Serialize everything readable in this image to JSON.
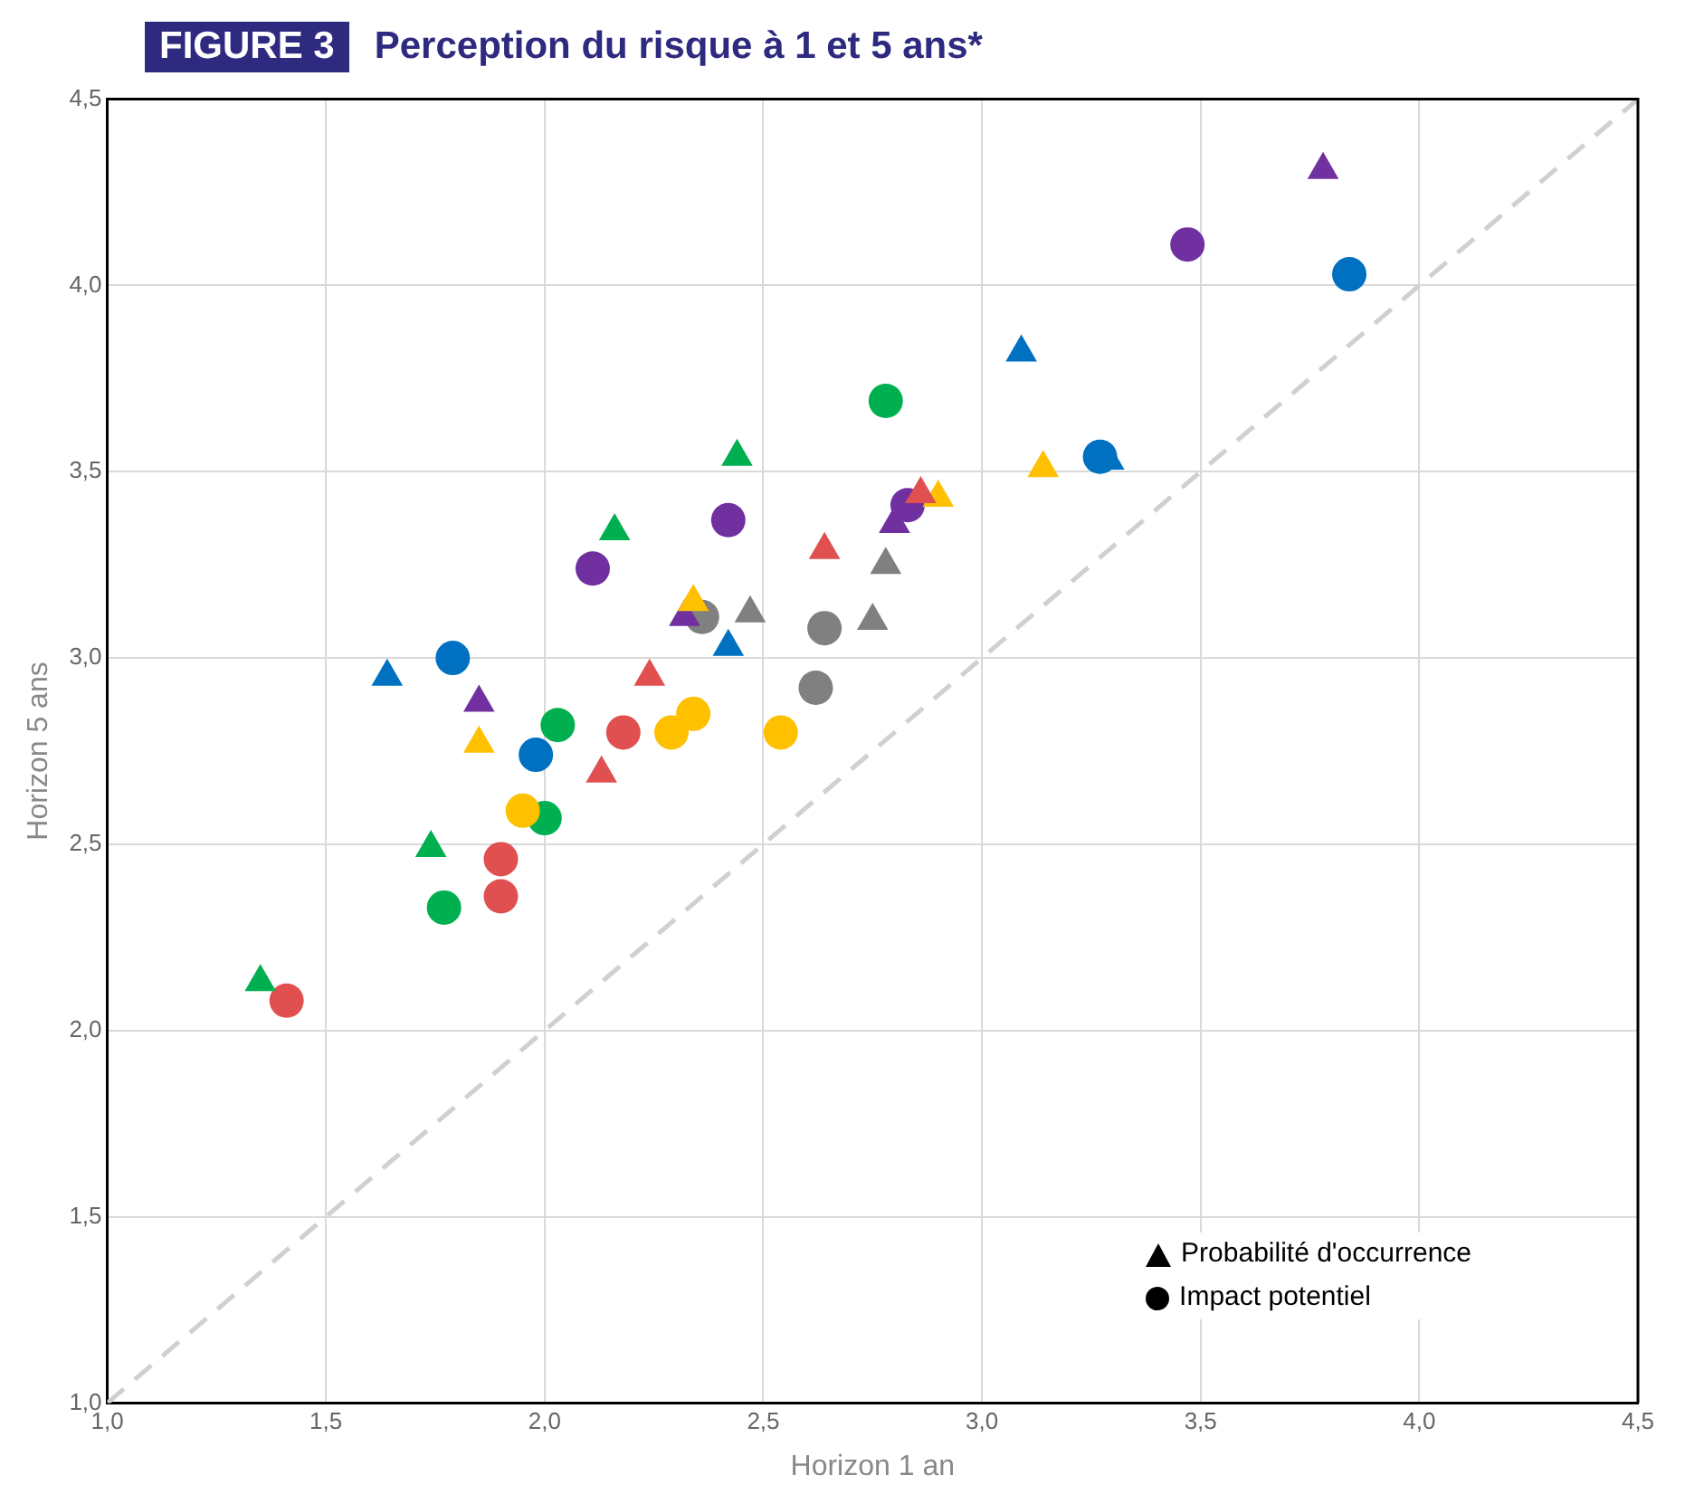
{
  "chart_data": {
    "type": "scatter",
    "title": "FIGURE 3",
    "subtitle": "Perception du risque à 1 et 5 ans*",
    "xlabel": "Horizon 1 an",
    "ylabel": "Horizon 5 ans",
    "xlim": [
      1,
      4.5
    ],
    "ylim": [
      1,
      4.5
    ],
    "xticks": [
      {
        "value": 1,
        "label": "1,0"
      },
      {
        "value": 1.5,
        "label": "1,5"
      },
      {
        "value": 2,
        "label": "2,0"
      },
      {
        "value": 2.5,
        "label": "2,5"
      },
      {
        "value": 3,
        "label": "3,0"
      },
      {
        "value": 3.5,
        "label": "3,5"
      },
      {
        "value": 4,
        "label": "4,0"
      },
      {
        "value": 4.5,
        "label": "4,5"
      }
    ],
    "yticks": [
      {
        "value": 1,
        "label": "1,0"
      },
      {
        "value": 1.5,
        "label": "1,5"
      },
      {
        "value": 2,
        "label": "2,0"
      },
      {
        "value": 2.5,
        "label": "2,5"
      },
      {
        "value": 3,
        "label": "3,0"
      },
      {
        "value": 3.5,
        "label": "3,5"
      },
      {
        "value": 4,
        "label": "4,0"
      },
      {
        "value": 4.5,
        "label": "4,5"
      }
    ],
    "grid": true,
    "legend": "bottom right",
    "series": [
      {
        "name": "Probabilité d'occurrence",
        "marker": "triangle",
        "x": [
          1.35,
          1.74,
          2.16,
          2.44,
          1.64,
          2.42,
          3.09,
          3.29,
          1.85,
          2.32,
          2.8,
          3.78,
          1.85,
          2.34,
          2.9,
          3.14,
          2.13,
          2.24,
          2.64,
          2.86,
          2.47,
          2.78,
          2.75
        ],
        "values": [
          2.13,
          2.49,
          3.34,
          3.54,
          2.95,
          3.03,
          3.82,
          3.53,
          2.88,
          3.11,
          3.36,
          4.31,
          2.77,
          3.15,
          3.43,
          3.51,
          2.69,
          2.95,
          3.29,
          3.44,
          3.12,
          3.25,
          3.1
        ],
        "colors": [
          "#00b050",
          "#00b050",
          "#00b050",
          "#00b050",
          "#0070c0",
          "#0070c0",
          "#0070c0",
          "#0070c0",
          "#7030a0",
          "#7030a0",
          "#7030a0",
          "#7030a0",
          "#ffc000",
          "#ffc000",
          "#ffc000",
          "#ffc000",
          "#e05050",
          "#e05050",
          "#e05050",
          "#e05050",
          "#808080",
          "#808080",
          "#808080"
        ]
      },
      {
        "name": "Impact potentiel",
        "marker": "circle",
        "x": [
          1.41,
          1.9,
          1.9,
          2.18,
          1.77,
          2.0,
          2.03,
          2.78,
          1.79,
          1.98,
          3.27,
          3.84,
          2.11,
          2.42,
          2.83,
          3.47,
          1.95,
          2.29,
          2.34,
          2.54,
          2.36,
          2.64,
          2.62
        ],
        "values": [
          2.08,
          2.46,
          2.36,
          2.8,
          2.33,
          2.57,
          2.82,
          3.69,
          3.0,
          2.74,
          3.54,
          4.03,
          3.24,
          3.37,
          3.41,
          4.11,
          2.59,
          2.8,
          2.85,
          2.8,
          3.11,
          3.08,
          2.92
        ],
        "colors": [
          "#e05050",
          "#e05050",
          "#e05050",
          "#e05050",
          "#00b050",
          "#00b050",
          "#00b050",
          "#00b050",
          "#0070c0",
          "#0070c0",
          "#0070c0",
          "#0070c0",
          "#7030a0",
          "#7030a0",
          "#7030a0",
          "#7030a0",
          "#ffc000",
          "#ffc000",
          "#ffc000",
          "#ffc000",
          "#808080",
          "#808080",
          "#808080"
        ]
      },
      {
        "type": "line",
        "x": [
          1,
          4.5
        ],
        "values": [
          1,
          4.5
        ],
        "color": "#d0d0d0",
        "line_style": "dashed",
        "marker": "none"
      }
    ]
  }
}
